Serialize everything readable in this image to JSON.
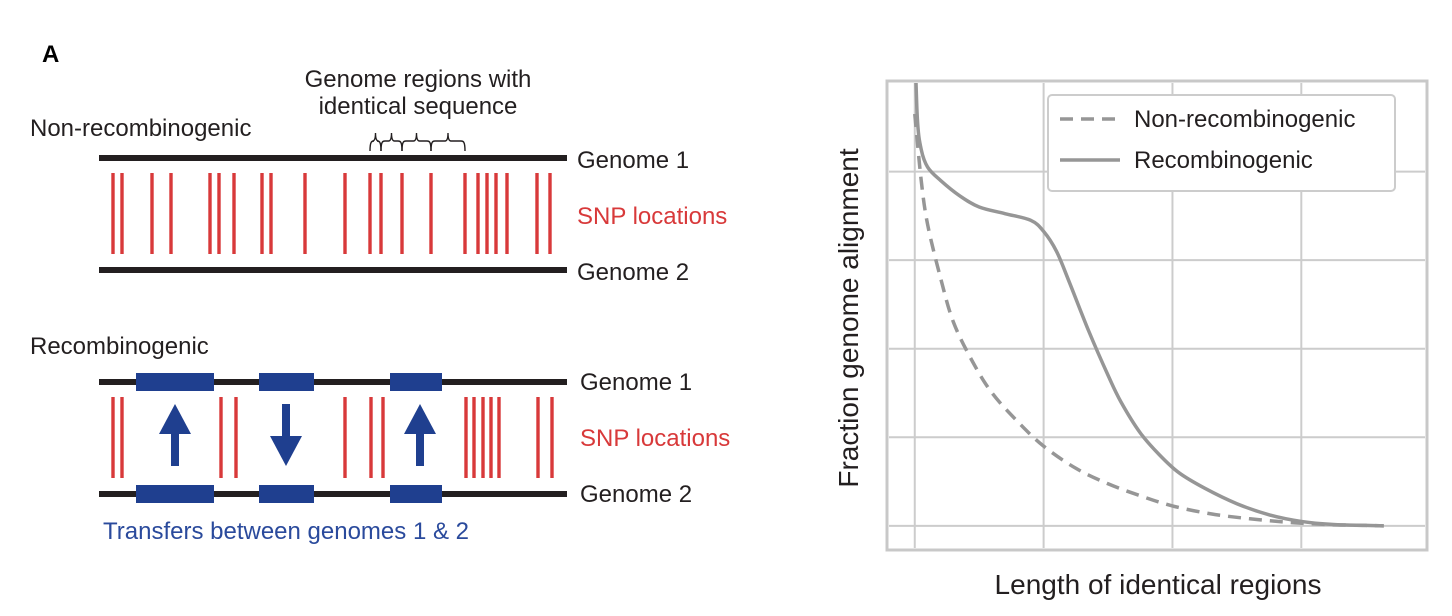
{
  "panel_label": "A",
  "colors": {
    "genome_line": "#231f20",
    "snp": "#d8393a",
    "transfer": "#1f3f8f",
    "transfer_text": "#2a4a9c",
    "curve": "#969696",
    "grid": "#cccccc",
    "frame": "#c8c8c8"
  },
  "diagram": {
    "non_recombinogenic": {
      "title": "Non-recombinogenic",
      "genome_1_label": "Genome 1",
      "genome_2_label": "Genome 2",
      "snp_label": "SNP locations",
      "callout": [
        "Genome regions with",
        "identical sequence"
      ]
    },
    "recombinogenic": {
      "title": "Recombinogenic",
      "genome_1_label": "Genome 1",
      "genome_2_label": "Genome 2",
      "snp_label": "SNP locations",
      "transfer_caption": "Transfers between genomes 1 & 2",
      "arrows": [
        "up",
        "down",
        "up"
      ]
    }
  },
  "chart_data": {
    "type": "line",
    "title": "",
    "xlabel": "Length of identical regions",
    "ylabel": "Fraction genome alignment",
    "x_tick_labels": [],
    "y_tick_labels": [],
    "grid": true,
    "legend_position": "top-right",
    "series": [
      {
        "name": "Non-recombinogenic",
        "style": "dashed",
        "color": "#969696",
        "x": [
          0.0,
          0.05,
          0.1,
          0.2,
          0.3,
          0.45,
          0.6,
          0.8,
          1.0,
          1.25,
          1.5,
          1.75,
          2.0,
          2.3,
          2.6,
          2.9,
          3.2,
          3.5,
          3.64
        ],
        "y": [
          0.93,
          0.78,
          0.68,
          0.56,
          0.46,
          0.37,
          0.3,
          0.235,
          0.18,
          0.13,
          0.095,
          0.068,
          0.045,
          0.027,
          0.016,
          0.008,
          0.003,
          0.001,
          0.0
        ]
      },
      {
        "name": "Recombinogenic",
        "style": "solid",
        "color": "#969696",
        "x": [
          0.0,
          0.02,
          0.05,
          0.1,
          0.2,
          0.35,
          0.5,
          0.7,
          0.9,
          1.0,
          1.1,
          1.2,
          1.35,
          1.5,
          1.6,
          1.75,
          1.9,
          2.05,
          2.25,
          2.5,
          2.75,
          3.0,
          3.25,
          3.5,
          3.64
        ],
        "y": [
          1.1,
          0.92,
          0.85,
          0.81,
          0.78,
          0.745,
          0.72,
          0.705,
          0.69,
          0.665,
          0.62,
          0.55,
          0.44,
          0.34,
          0.28,
          0.21,
          0.16,
          0.12,
          0.085,
          0.05,
          0.025,
          0.01,
          0.003,
          0.001,
          0.0
        ]
      }
    ],
    "xlim": [
      -0.2,
      3.96
    ],
    "ylim": [
      -0.05,
      1.0
    ]
  }
}
